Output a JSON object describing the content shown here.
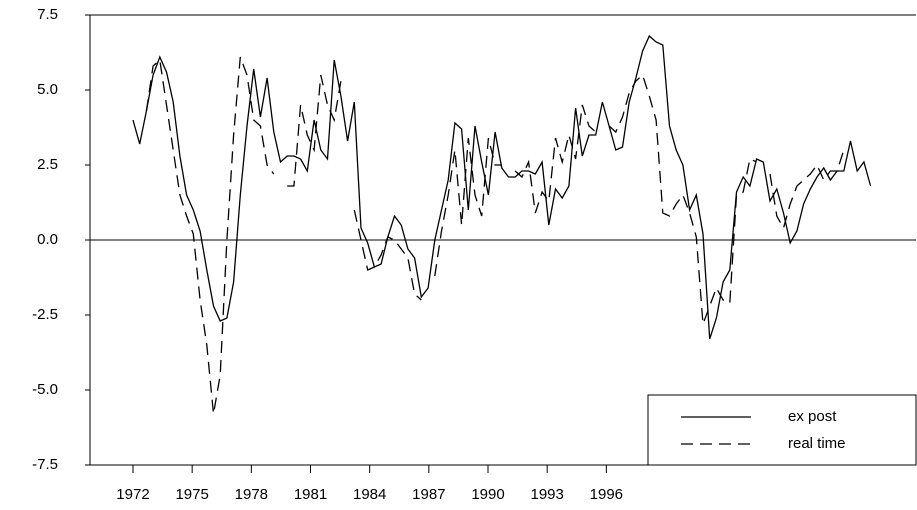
{
  "chart_data": {
    "type": "line",
    "x": [
      1972.0,
      1972.34,
      1972.68,
      1973.02,
      1973.36,
      1973.7,
      1974.04,
      1974.38,
      1974.72,
      1975.06,
      1975.4,
      1975.74,
      1976.08,
      1976.42,
      1976.76,
      1977.1,
      1977.44,
      1977.78,
      1978.12,
      1978.46,
      1978.8,
      1979.14,
      1979.48,
      1979.82,
      1980.16,
      1980.5,
      1980.84,
      1981.18,
      1981.52,
      1981.86,
      1982.2,
      1982.54,
      1982.88,
      1983.22,
      1983.56,
      1983.9,
      1984.24,
      1984.58,
      1984.92,
      1985.26,
      1985.6,
      1985.94,
      1986.28,
      1986.62,
      1986.96,
      1987.3,
      1987.64,
      1987.98,
      1988.32,
      1988.66,
      1989.0,
      1989.34,
      1989.68,
      1990.02,
      1990.36,
      1990.7,
      1991.04,
      1991.38,
      1991.72,
      1992.06,
      1992.4,
      1992.74,
      1993.08,
      1993.42,
      1993.76,
      1994.1,
      1994.44,
      1994.78,
      1995.12,
      1995.46,
      1995.8,
      1996.14,
      1996.48,
      1996.82,
      1997.16,
      1997.5,
      1997.84,
      1998.18,
      1998.52,
      1998.86,
      1999.2,
      1999.54,
      1999.88,
      2000.22,
      2000.56,
      2000.9,
      2001.24,
      2001.58,
      2001.92,
      2002.26,
      2002.6,
      2002.94,
      2003.28,
      2003.62,
      2003.96,
      2004.3,
      2004.64,
      2004.98,
      2005.32,
      2005.66,
      2006.0,
      2006.34,
      2006.68,
      2007.02,
      2007.36,
      2007.7,
      2008.04,
      2008.38,
      2008.72,
      2009.06,
      2009.4
    ],
    "series": [
      {
        "name": "ex post",
        "color": "#000000",
        "dash": "solid",
        "values": [
          4.0,
          3.2,
          4.3,
          5.5,
          6.1,
          5.6,
          4.6,
          2.8,
          1.5,
          1.0,
          0.3,
          -1.0,
          -2.2,
          -2.7,
          -2.6,
          -1.4,
          1.5,
          3.8,
          5.7,
          4.1,
          5.4,
          3.6,
          2.6,
          2.8,
          2.8,
          2.7,
          2.3,
          4.0,
          3.0,
          2.7,
          6.0,
          4.8,
          3.3,
          4.6,
          0.4,
          -0.1,
          -0.9,
          -0.8,
          0.1,
          0.8,
          0.5,
          -0.3,
          -0.6,
          -1.9,
          -1.6,
          0.0,
          1.0,
          2.0,
          3.9,
          3.7,
          1.0,
          3.8,
          2.6,
          1.5,
          3.6,
          2.4,
          2.1,
          2.1,
          2.3,
          2.3,
          2.2,
          2.6,
          0.5,
          1.7,
          1.4,
          1.8,
          4.4,
          2.8,
          3.5,
          3.5,
          4.6,
          3.8,
          3.0,
          3.1,
          4.6,
          5.4,
          6.3,
          6.8,
          6.6,
          6.5,
          3.8,
          3.0,
          2.5,
          1.0,
          1.5,
          0.2,
          -3.3,
          -2.6,
          -1.4,
          -1.0,
          1.6,
          2.1,
          1.8,
          2.7,
          2.6,
          1.3,
          1.7,
          0.9,
          -0.1,
          0.3,
          1.2,
          1.7,
          2.1,
          2.4,
          2.0,
          2.3,
          2.3,
          3.3,
          2.3,
          2.6,
          1.8
        ]
      },
      {
        "name": "real time",
        "color": "#000000",
        "dash": "dashed",
        "values": [
          null,
          null,
          4.3,
          5.8,
          6.0,
          4.5,
          3.0,
          1.5,
          0.8,
          0.2,
          -2.0,
          -3.5,
          -5.8,
          -4.5,
          0.0,
          3.5,
          6.1,
          5.5,
          4.0,
          3.8,
          2.5,
          2.2,
          null,
          1.8,
          1.8,
          4.5,
          3.5,
          3.0,
          5.5,
          4.5,
          4.0,
          5.3,
          null,
          1.0,
          0.0,
          -1.0,
          -0.9,
          -0.5,
          0.1,
          0.0,
          -0.3,
          -0.6,
          -1.8,
          -2.0,
          null,
          -1.2,
          0.3,
          1.5,
          3.0,
          0.5,
          3.4,
          1.5,
          0.8,
          3.4,
          2.5,
          2.5,
          null,
          2.3,
          2.1,
          2.6,
          0.9,
          1.6,
          1.3,
          3.4,
          2.6,
          3.5,
          2.7,
          4.5,
          3.8,
          3.6,
          null,
          3.8,
          3.6,
          4.1,
          4.9,
          5.3,
          5.5,
          4.8,
          4.0,
          0.9,
          0.8,
          1.2,
          1.5,
          0.9,
          0.1,
          -2.8,
          -2.2,
          -1.6,
          -2.0,
          -2.1,
          1.5,
          1.6,
          2.7,
          2.6,
          null,
          2.2,
          0.8,
          0.4,
          1.2,
          1.8,
          2.0,
          2.2,
          2.5,
          2.0,
          2.3,
          2.3,
          3.0,
          null,
          null,
          null,
          null
        ]
      }
    ],
    "xlim": [
      1969.82,
      2011.7
    ],
    "xticks": [
      1972,
      1975,
      1978,
      1981,
      1984,
      1987,
      1990,
      1993,
      1996
    ],
    "ylim": [
      -7.5,
      7.5
    ],
    "yticks": [
      -7.5,
      {
        "value": -5,
        "label": "-5.0"
      },
      -2.5,
      {
        "value": 0,
        "label": "0.0"
      },
      2.5,
      {
        "value": 5,
        "label": "5.0"
      },
      7.5
    ],
    "zero_line": true,
    "legend": "lower right"
  }
}
